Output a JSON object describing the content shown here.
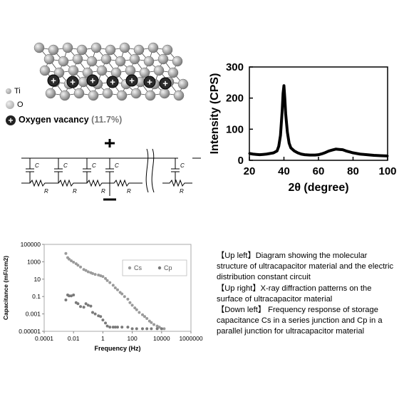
{
  "figure": {
    "molecule": {
      "legend": {
        "ti_label": "Ti",
        "o_label": "O",
        "vacancy_label": "Oxygen vacancy",
        "vacancy_value": "(11.7%)"
      },
      "vacancy_symbol": "+"
    },
    "circuit": {
      "capacitor_label": "C",
      "resistor_label": "R",
      "plus_symbol": "+",
      "minus_symbol": "−"
    }
  },
  "chart_data": [
    {
      "type": "line",
      "xlabel": "2θ (degree)",
      "ylabel": "Intensity (CPS)",
      "xlim": [
        20,
        100
      ],
      "ylim": [
        0,
        300
      ],
      "xticks": [
        "20",
        "40",
        "60",
        "80",
        "100"
      ],
      "yticks": [
        "0",
        "100",
        "200",
        "300"
      ],
      "series": [
        {
          "x": [
            20,
            22,
            24,
            26,
            28,
            30,
            32,
            34,
            36,
            37,
            38,
            39,
            39.5,
            40,
            40.5,
            41,
            42,
            43,
            44,
            46,
            48,
            50,
            52,
            55,
            58,
            60,
            62,
            64,
            66,
            68,
            70,
            72,
            74,
            76,
            78,
            80,
            84,
            88,
            92,
            96,
            100
          ],
          "y": [
            22,
            20,
            19,
            18,
            19,
            20,
            22,
            24,
            30,
            45,
            80,
            160,
            215,
            240,
            200,
            150,
            90,
            55,
            40,
            30,
            24,
            20,
            18,
            17,
            17,
            18,
            21,
            25,
            30,
            33,
            36,
            35,
            34,
            30,
            27,
            24,
            20,
            18,
            16,
            15,
            14
          ]
        }
      ]
    },
    {
      "type": "scatter",
      "xlabel": "Frequency (Hz)",
      "ylabel": "Capacitance (mF/cm2)",
      "xscale": "log",
      "yscale": "log",
      "xlim": [
        0.0001,
        1000000
      ],
      "ylim": [
        1e-05,
        100000
      ],
      "xticks": [
        "0.0001",
        "0.01",
        "1",
        "100",
        "10000",
        "1000000"
      ],
      "yticks": [
        "0.00001",
        "0.001",
        "0.1",
        "10",
        "1000",
        "100000"
      ],
      "legend_position": "right",
      "series": [
        {
          "name": "Cs",
          "color": "#9a9a9a",
          "x": [
            0.003,
            0.004,
            0.005,
            0.007,
            0.01,
            0.015,
            0.02,
            0.03,
            0.05,
            0.07,
            0.1,
            0.15,
            0.2,
            0.3,
            0.5,
            0.7,
            1,
            1.5,
            2,
            3,
            5,
            7,
            10,
            15,
            20,
            30,
            50,
            70,
            100,
            150,
            200,
            300,
            500,
            700,
            1000,
            1500,
            2000,
            3000,
            5000,
            7000,
            10000,
            15000
          ],
          "y": [
            9000,
            3000,
            2000,
            1300,
            900,
            600,
            400,
            250,
            130,
            100,
            70,
            55,
            45,
            35,
            30,
            25,
            20,
            12,
            7,
            4,
            2,
            1,
            0.6,
            0.3,
            0.2,
            0.1,
            0.05,
            0.02,
            0.01,
            0.005,
            0.003,
            0.0015,
            0.0008,
            0.0005,
            0.0003,
            0.00015,
            0.0001,
            6e-05,
            4e-05,
            3e-05,
            2e-05,
            2e-05
          ]
        },
        {
          "name": "Cp",
          "color": "#7a7a7a",
          "x": [
            0.003,
            0.004,
            0.005,
            0.007,
            0.01,
            0.015,
            0.02,
            0.03,
            0.05,
            0.07,
            0.1,
            0.15,
            0.2,
            0.3,
            0.5,
            0.7,
            1,
            1.5,
            2,
            3,
            5,
            7,
            10,
            20,
            50,
            100,
            200,
            500,
            1000,
            2000,
            5000,
            10000
          ],
          "y": [
            0.04,
            0.15,
            0.12,
            0.12,
            0.15,
            0.02,
            0.015,
            0.007,
            0.006,
            0.015,
            0.01,
            0.008,
            0.0015,
            0.001,
            0.0006,
            0.0005,
            0.0002,
            9e-05,
            4e-05,
            3e-05,
            3e-05,
            3e-05,
            3e-05,
            3e-05,
            3e-05,
            2e-05,
            2e-05,
            2e-05,
            2e-05,
            2e-05,
            2e-05,
            2e-05
          ]
        }
      ]
    }
  ],
  "caption": {
    "line1": "【Up left】Diagram showing the molecular structure of ultracapacitor material and the electric distribution constant circuit",
    "line2": "【Up right】X-ray diffraction patterns on the surface of ultracapacitor material",
    "line3": "【Down left】 Frequency response of storage capacitance Cs in a series junction and Cp in a parallel junction for ultracapacitor material"
  }
}
